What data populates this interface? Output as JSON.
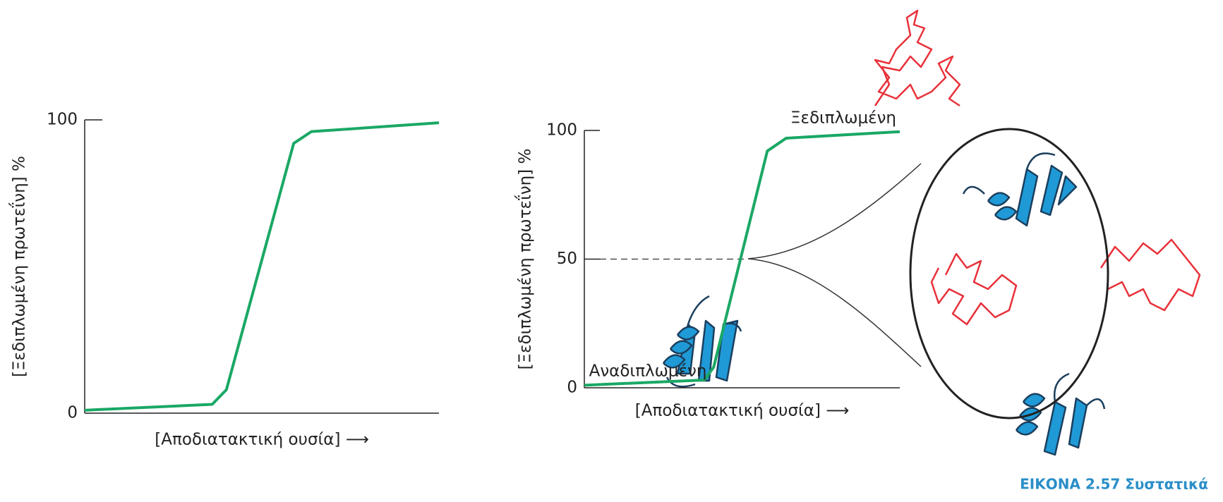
{
  "chart_data": [
    {
      "type": "line",
      "ylabel": "[Ξεδιπλωμένη πρωτεΐνη] %",
      "xlabel": "[Αποδιατακτική ουσία] ⟶",
      "xlim": [
        0,
        100
      ],
      "ylim": [
        0,
        100
      ],
      "yticks": [
        0,
        100
      ],
      "series": [
        {
          "color": "#1aa865",
          "x": [
            0,
            36,
            40,
            59,
            64,
            100
          ],
          "values": [
            1,
            3,
            8,
            92,
            96,
            99
          ]
        }
      ]
    },
    {
      "type": "line",
      "ylabel": "[Ξεδιπλωμένη πρωτεΐνη] %",
      "xlabel": "[Αποδιατακτική ουσία] ⟶",
      "xlim": [
        0,
        100
      ],
      "ylim": [
        0,
        100
      ],
      "yticks": [
        0,
        50,
        100
      ],
      "annotations": [
        "Ξεδιπλωμένη",
        "Αναδιπλωμένη"
      ],
      "series": [
        {
          "color": "#1aa865",
          "x": [
            0,
            38,
            41,
            58,
            64,
            100
          ],
          "values": [
            1,
            3,
            8,
            92,
            97,
            99.5
          ]
        }
      ]
    }
  ],
  "caption": "ΕΙΚΟΝΑ 2.57 Συστατικά"
}
